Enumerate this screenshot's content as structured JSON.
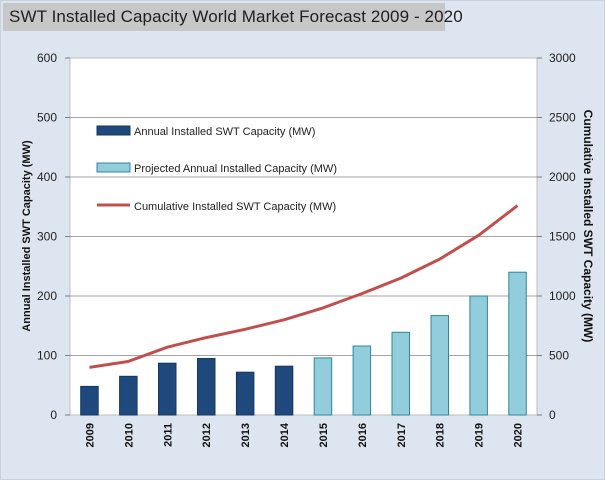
{
  "title": "SWT Installed Capacity World Market Forecast 2009 - 2020",
  "chart_data": {
    "type": "bar",
    "title": "SWT Installed Capacity World Market Forecast 2009 - 2020",
    "categories": [
      "2009",
      "2010",
      "2011",
      "2012",
      "2013",
      "2014",
      "2015",
      "2016",
      "2017",
      "2018",
      "2019",
      "2020"
    ],
    "ylabel": "Annual Installed SWT Capacity (MW)",
    "y2label": "Cumulative Installed SWT Capacity (MW)",
    "ylim": [
      0,
      600
    ],
    "y2lim": [
      0,
      3000
    ],
    "yticks": [
      0,
      100,
      200,
      300,
      400,
      500,
      600
    ],
    "y2ticks": [
      0,
      500,
      1000,
      1500,
      2000,
      2500,
      3000
    ],
    "grid": true,
    "series": [
      {
        "name": "Annual Installed SWT Capacity (MW)",
        "type": "bar",
        "axis": "left",
        "color": "#1f497d",
        "values": [
          48,
          65,
          87,
          95,
          72,
          82,
          null,
          null,
          null,
          null,
          null,
          null
        ]
      },
      {
        "name": "Projected Annual Installed Capacity (MW)",
        "type": "bar",
        "axis": "left",
        "color": "#92cddc",
        "values": [
          null,
          null,
          null,
          null,
          null,
          null,
          96,
          116,
          139,
          167,
          200,
          240
        ]
      },
      {
        "name": "Cumulative Installed SWT Capacity (MW)",
        "type": "line",
        "axis": "right",
        "color": "#c0504d",
        "values": [
          400,
          450,
          570,
          650,
          720,
          800,
          900,
          1020,
          1150,
          1310,
          1510,
          1760
        ]
      }
    ]
  }
}
